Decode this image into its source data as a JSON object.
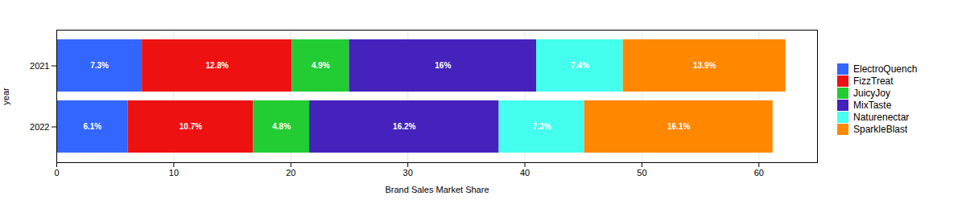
{
  "chart_data": {
    "type": "bar",
    "orientation": "horizontal",
    "stacked": true,
    "data_labels": true,
    "grid": true,
    "legend": "right",
    "xlabel": "Brand Sales Market Share",
    "ylabel": "year",
    "categories": [
      "2021",
      "2022"
    ],
    "xlim": [
      0,
      65
    ],
    "xticks": [
      0,
      10,
      20,
      30,
      40,
      50,
      60
    ],
    "series": [
      {
        "name": "ElectroQuench",
        "color": "#3366ff",
        "values": [
          7.3,
          6.1
        ],
        "value_labels": [
          "7.3%",
          "6.1%"
        ]
      },
      {
        "name": "FizzTreat",
        "color": "#ee1111",
        "values": [
          12.8,
          10.7
        ],
        "value_labels": [
          "12.8%",
          "10.7%"
        ]
      },
      {
        "name": "JuicyJoy",
        "color": "#22cc33",
        "values": [
          4.9,
          4.8
        ],
        "value_labels": [
          "4.9%",
          "4.8%"
        ]
      },
      {
        "name": "MixTaste",
        "color": "#4422bb",
        "values": [
          16.0,
          16.2
        ],
        "value_labels": [
          "16%",
          "16.2%"
        ]
      },
      {
        "name": "Naturenectar",
        "color": "#44ffee",
        "values": [
          7.4,
          7.3
        ],
        "value_labels": [
          "7.4%",
          "7.3%"
        ]
      },
      {
        "name": "SparkleBlast",
        "color": "#ff8800",
        "values": [
          13.9,
          16.1
        ],
        "value_labels": [
          "13.9%",
          "16.1%"
        ]
      }
    ]
  }
}
